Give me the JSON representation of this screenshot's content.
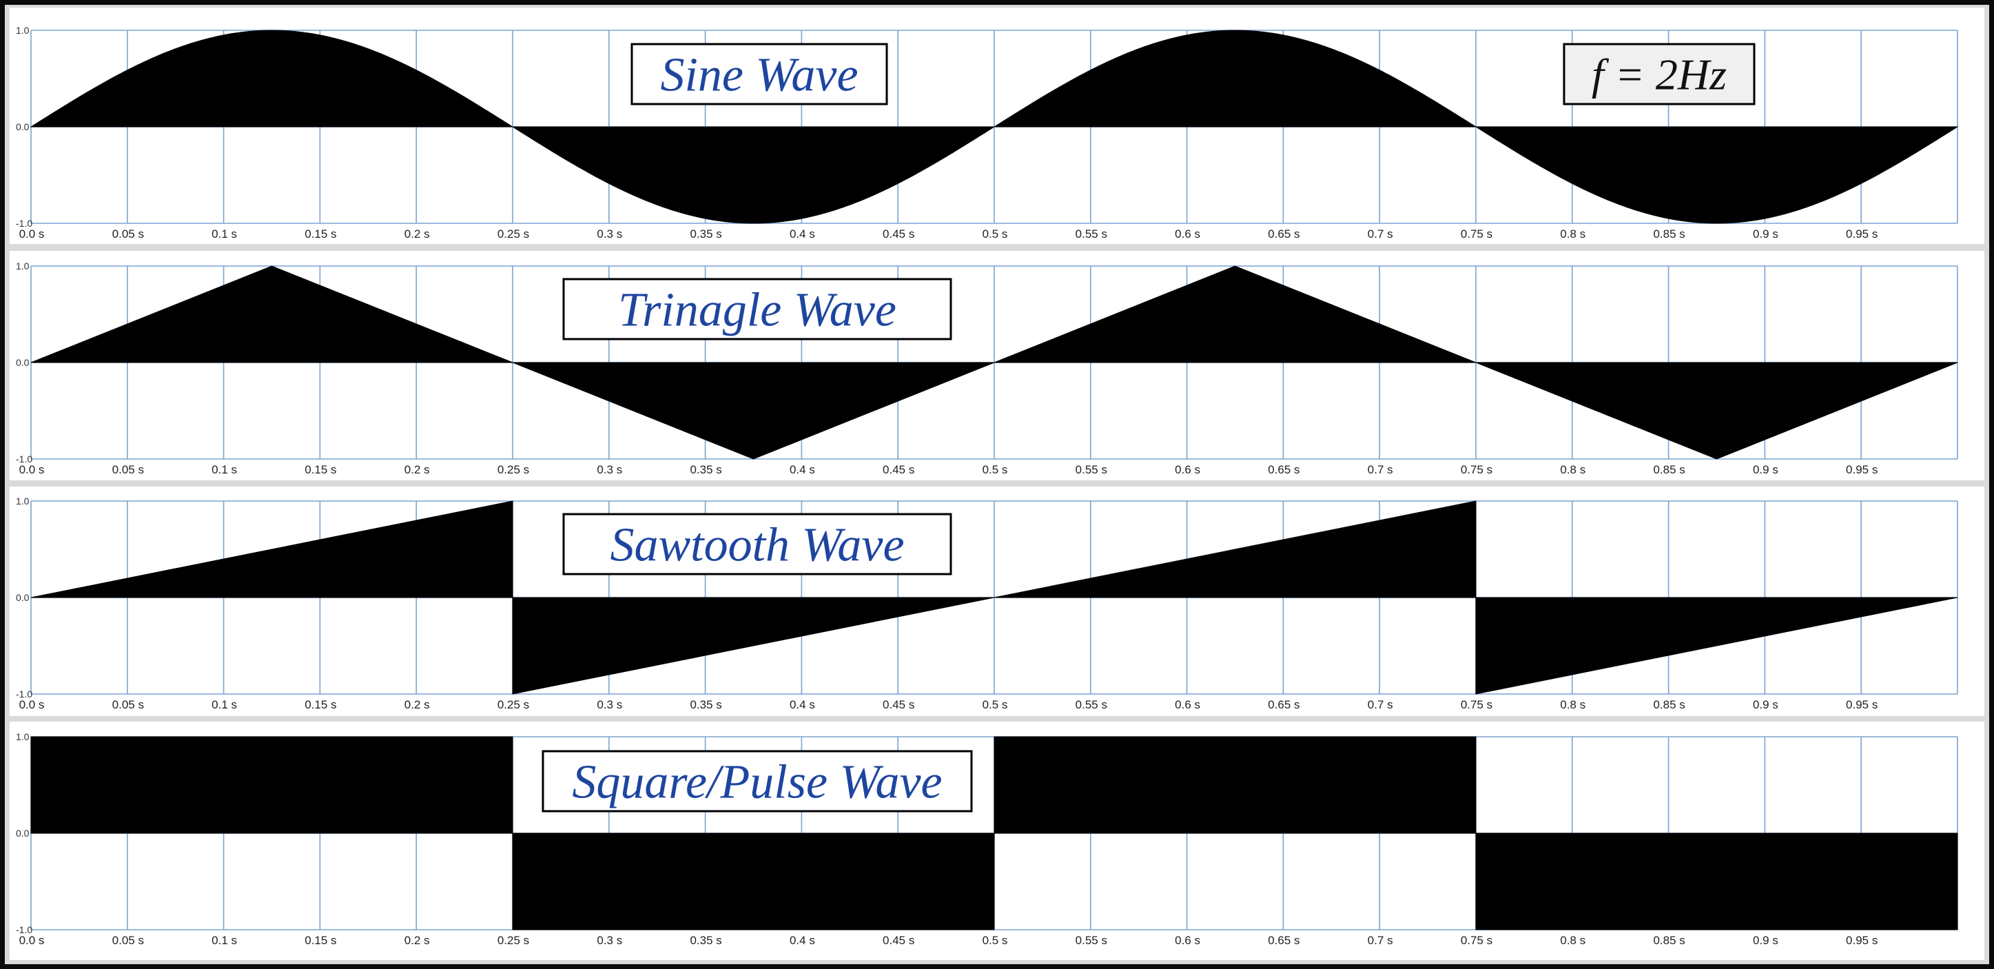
{
  "colors": {
    "grid": "#7ba3d4",
    "fill": "#000000",
    "title": "#1e46a0",
    "panel_bg": "#ffffff",
    "frame": "#dadada",
    "freq_box_bg": "#f0f0f0"
  },
  "frequency_label": "f = 2Hz",
  "chart_data": [
    {
      "type": "area",
      "title": "Sine Wave",
      "waveform": "sine",
      "frequency_hz": 2,
      "xlim": [
        0,
        1
      ],
      "ylim": [
        -1,
        1
      ],
      "x_tick_labels": [
        "0.0 s",
        "0.05 s",
        "0.1 s",
        "0.15 s",
        "0.2 s",
        "0.25 s",
        "0.3 s",
        "0.35 s",
        "0.4 s",
        "0.45 s",
        "0.5 s",
        "0.55 s",
        "0.6 s",
        "0.65 s",
        "0.7 s",
        "0.75 s",
        "0.8 s",
        "0.85 s",
        "0.9 s",
        "0.95 s"
      ],
      "y_tick_labels": [
        "1.0",
        "0.0",
        "-1.0"
      ],
      "grid": true
    },
    {
      "type": "area",
      "title": "Trinagle Wave",
      "waveform": "triangle",
      "frequency_hz": 2,
      "xlim": [
        0,
        1
      ],
      "ylim": [
        -1,
        1
      ],
      "x_tick_labels": [
        "0.0 s",
        "0.05 s",
        "0.1 s",
        "0.15 s",
        "0.2 s",
        "0.25 s",
        "0.3 s",
        "0.35 s",
        "0.4 s",
        "0.45 s",
        "0.5 s",
        "0.55 s",
        "0.6 s",
        "0.65 s",
        "0.7 s",
        "0.75 s",
        "0.8 s",
        "0.85 s",
        "0.9 s",
        "0.95 s"
      ],
      "y_tick_labels": [
        "1.0",
        "0.0",
        "-1.0"
      ],
      "grid": true,
      "x": [
        0,
        0.125,
        0.25,
        0.375,
        0.5,
        0.625,
        0.75,
        0.875,
        1.0
      ],
      "y": [
        0,
        1,
        0,
        -1,
        0,
        1,
        0,
        -1,
        0
      ]
    },
    {
      "type": "area",
      "title": "Sawtooth Wave",
      "waveform": "sawtooth",
      "frequency_hz": 2,
      "xlim": [
        0,
        1
      ],
      "ylim": [
        -1,
        1
      ],
      "x_tick_labels": [
        "0.0 s",
        "0.05 s",
        "0.1 s",
        "0.15 s",
        "0.2 s",
        "0.25 s",
        "0.3 s",
        "0.35 s",
        "0.4 s",
        "0.45 s",
        "0.5 s",
        "0.55 s",
        "0.6 s",
        "0.65 s",
        "0.7 s",
        "0.75 s",
        "0.8 s",
        "0.85 s",
        "0.9 s",
        "0.95 s"
      ],
      "y_tick_labels": [
        "1.0",
        "0.0",
        "-1.0"
      ],
      "grid": true,
      "x": [
        0,
        0.25,
        0.25,
        0.5,
        0.75,
        0.75,
        1.0
      ],
      "y": [
        0,
        1,
        -1,
        0,
        1,
        -1,
        0
      ]
    },
    {
      "type": "area",
      "title": "Square/Pulse Wave",
      "waveform": "square",
      "frequency_hz": 2,
      "xlim": [
        0,
        1
      ],
      "ylim": [
        -1,
        1
      ],
      "x_tick_labels": [
        "0.0 s",
        "0.05 s",
        "0.1 s",
        "0.15 s",
        "0.2 s",
        "0.25 s",
        "0.3 s",
        "0.35 s",
        "0.4 s",
        "0.45 s",
        "0.5 s",
        "0.55 s",
        "0.6 s",
        "0.65 s",
        "0.7 s",
        "0.75 s",
        "0.8 s",
        "0.85 s",
        "0.9 s",
        "0.95 s"
      ],
      "y_tick_labels": [
        "1.0",
        "0.0",
        "-1.0"
      ],
      "grid": true,
      "x": [
        0,
        0.25,
        0.25,
        0.5,
        0.5,
        0.75,
        0.75,
        1.0
      ],
      "y": [
        1,
        1,
        -1,
        -1,
        1,
        1,
        -1,
        -1
      ]
    }
  ]
}
